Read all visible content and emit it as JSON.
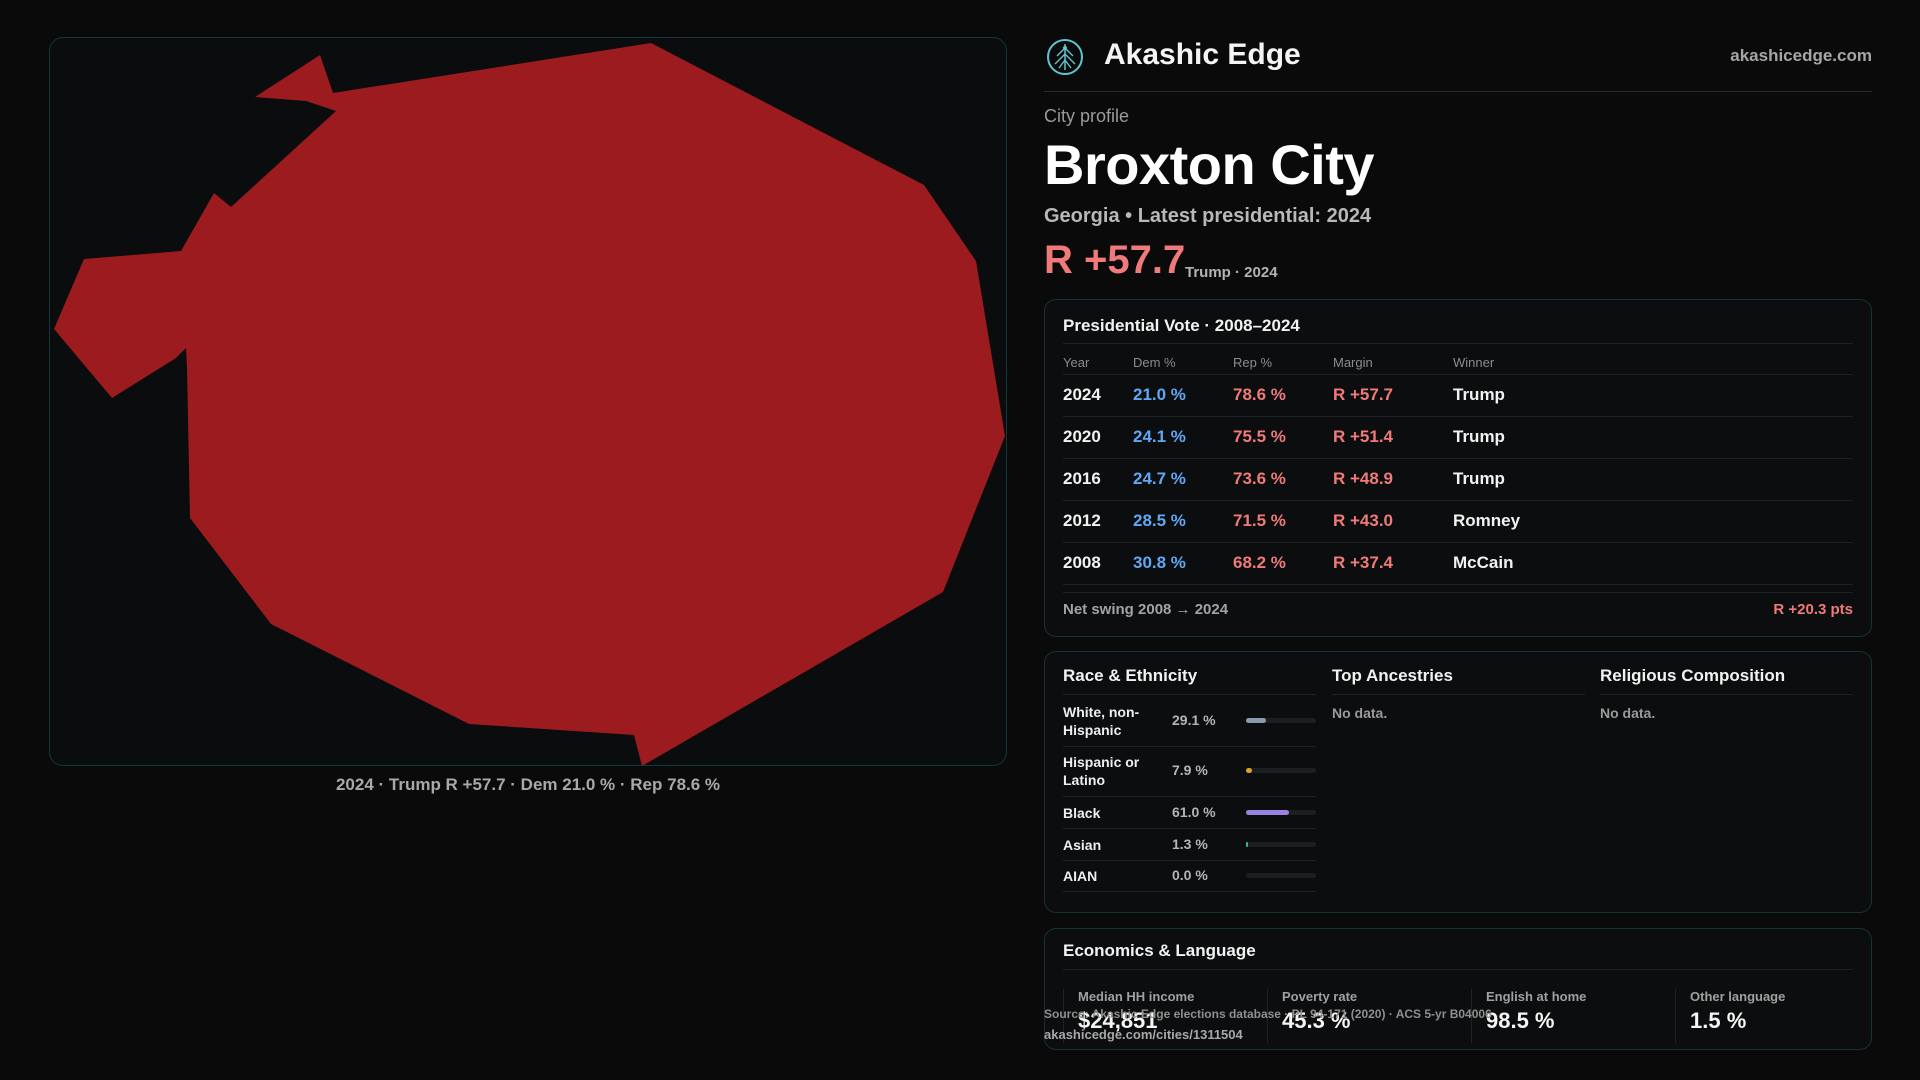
{
  "map": {
    "fill_color": "#9b1b1f",
    "caption": "2024 · Trump R +57.7 · Dem 21.0 % · Rep 78.6 %"
  },
  "brand": {
    "name": "Akashic Edge",
    "url": "akashicedge.com",
    "logo_icon": "tree-of-life-icon"
  },
  "profile": {
    "eyebrow": "City profile",
    "city": "Broxton City",
    "subtitle": "Georgia • Latest presidential: 2024",
    "margin": "R +57.7",
    "margin_note": "Trump · 2024"
  },
  "vote": {
    "title": "Presidential Vote · 2008–2024",
    "headers": {
      "year": "Year",
      "dem": "Dem %",
      "rep": "Rep %",
      "margin": "Margin",
      "winner": "Winner"
    },
    "rows": [
      {
        "year": "2024",
        "dem": "21.0 %",
        "rep": "78.6 %",
        "margin": "R +57.7",
        "winner": "Trump"
      },
      {
        "year": "2020",
        "dem": "24.1 %",
        "rep": "75.5 %",
        "margin": "R +51.4",
        "winner": "Trump"
      },
      {
        "year": "2016",
        "dem": "24.7 %",
        "rep": "73.6 %",
        "margin": "R +48.9",
        "winner": "Trump"
      },
      {
        "year": "2012",
        "dem": "28.5 %",
        "rep": "71.5 %",
        "margin": "R +43.0",
        "winner": "Romney"
      },
      {
        "year": "2008",
        "dem": "30.8 %",
        "rep": "68.2 %",
        "margin": "R +37.4",
        "winner": "McCain"
      }
    ],
    "swing_label": "Net swing 2008 → 2024",
    "swing_value": "R +20.3 pts"
  },
  "demographics": {
    "race_title": "Race & Ethnicity",
    "race": [
      {
        "label": "White, non-Hispanic",
        "value": "29.1 %",
        "share": 0.291,
        "color": "#8a9bb0"
      },
      {
        "label": "Hispanic or Latino",
        "value": "7.9 %",
        "share": 0.079,
        "color": "#e0a030"
      },
      {
        "label": "Black",
        "value": "61.0 %",
        "share": 0.61,
        "color": "#9a82e0"
      },
      {
        "label": "Asian",
        "value": "1.3 %",
        "share": 0.013,
        "color": "#3fb59a"
      },
      {
        "label": "AIAN",
        "value": "0.0 %",
        "share": 0.0,
        "color": "#c07040"
      }
    ],
    "ancestry_title": "Top Ancestries",
    "ancestry_nodata": "No data.",
    "religion_title": "Religious Composition",
    "religion_nodata": "No data."
  },
  "economics": {
    "title": "Economics & Language",
    "stats": [
      {
        "label": "Median HH income",
        "value": "$24,851"
      },
      {
        "label": "Poverty rate",
        "value": "45.3 %"
      },
      {
        "label": "English at home",
        "value": "98.5 %"
      },
      {
        "label": "Other language",
        "value": "1.5 %"
      }
    ]
  },
  "footer": {
    "source": "Source: Akashic Edge elections database · PL 94-171 (2020) · ACS 5-yr B04006",
    "url": "akashicedge.com/cities/1311504"
  }
}
